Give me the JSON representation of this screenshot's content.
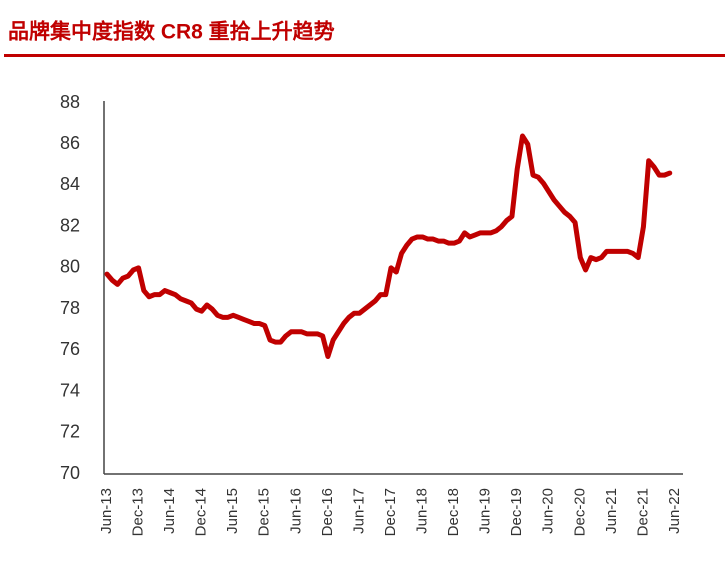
{
  "chart_data": {
    "type": "line",
    "title": "品牌集中度指数 CR8 重拾上升趋势",
    "categories": [
      "Jun-13",
      null,
      null,
      null,
      null,
      null,
      "Dec-13",
      null,
      null,
      null,
      null,
      null,
      "Jun-14",
      null,
      null,
      null,
      null,
      null,
      "Dec-14",
      null,
      null,
      null,
      null,
      null,
      "Jun-15",
      null,
      null,
      null,
      null,
      null,
      "Dec-15",
      null,
      null,
      null,
      null,
      null,
      "Jun-16",
      null,
      null,
      null,
      null,
      null,
      "Dec-16",
      null,
      null,
      null,
      null,
      null,
      "Jun-17",
      null,
      null,
      null,
      null,
      null,
      "Dec-17",
      null,
      null,
      null,
      null,
      null,
      "Jun-18",
      null,
      null,
      null,
      null,
      null,
      "Dec-18",
      null,
      null,
      null,
      null,
      null,
      "Jun-19",
      null,
      null,
      null,
      null,
      null,
      "Dec-19",
      null,
      null,
      null,
      null,
      null,
      "Jun-20",
      null,
      null,
      null,
      null,
      null,
      "Dec-20",
      null,
      null,
      null,
      null,
      null,
      "Jun-21",
      null,
      null,
      null,
      null,
      null,
      "Dec-21",
      null,
      null,
      null,
      null,
      null,
      "Jun-22"
    ],
    "series": [
      {
        "name": "CR8",
        "color": "#c00000",
        "values": [
          79.7,
          79.4,
          79.2,
          79.5,
          79.6,
          79.9,
          80.0,
          78.9,
          78.6,
          78.7,
          78.7,
          78.9,
          78.8,
          78.7,
          78.5,
          78.4,
          78.3,
          78.0,
          77.9,
          78.2,
          78.0,
          77.7,
          77.6,
          77.6,
          77.7,
          77.6,
          77.5,
          77.4,
          77.3,
          77.3,
          77.2,
          76.5,
          76.4,
          76.4,
          76.7,
          76.9,
          76.9,
          76.9,
          76.8,
          76.8,
          76.8,
          76.7,
          75.7,
          76.5,
          76.9,
          77.3,
          77.6,
          77.8,
          77.8,
          78.0,
          78.2,
          78.4,
          78.7,
          78.7,
          80.0,
          79.8,
          80.7,
          81.1,
          81.4,
          81.5,
          81.5,
          81.4,
          81.4,
          81.3,
          81.3,
          81.2,
          81.2,
          81.3,
          81.7,
          81.5,
          81.6,
          81.7,
          81.7,
          81.7,
          81.8,
          82.0,
          82.3,
          82.5,
          84.8,
          86.4,
          86.0,
          84.5,
          84.4,
          84.1,
          83.7,
          83.3,
          83.0,
          82.7,
          82.5,
          82.2,
          80.5,
          79.9,
          80.5,
          80.4,
          80.5,
          80.8,
          80.8,
          80.8,
          80.8,
          80.8,
          80.7,
          80.5,
          82.0,
          85.2,
          84.9,
          84.5,
          84.5,
          84.6,
          null
        ]
      }
    ],
    "ylim": [
      70,
      88
    ],
    "yticks": [
      70,
      72,
      74,
      76,
      78,
      80,
      82,
      84,
      86,
      88
    ],
    "grid": false
  }
}
